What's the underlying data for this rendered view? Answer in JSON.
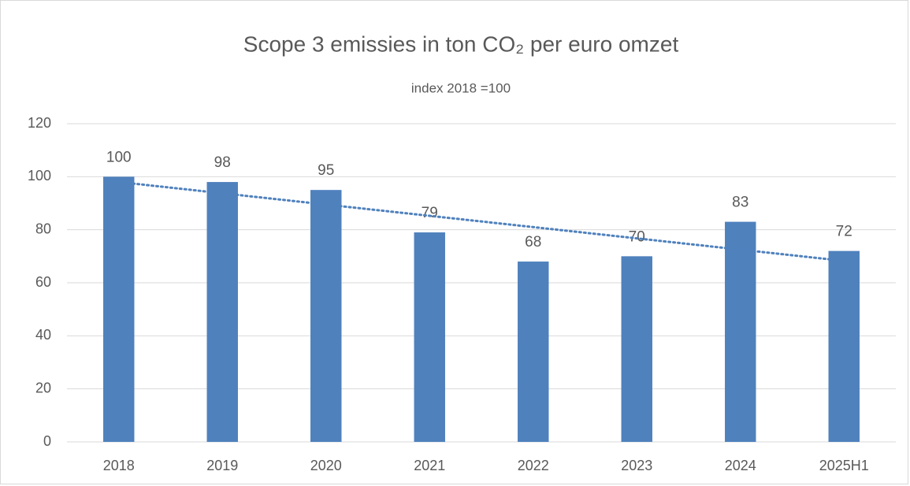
{
  "chart_data": {
    "type": "bar",
    "title": "Scope 3 emissies in ton CO₂ per euro omzet",
    "subtitle": "index 2018 =100",
    "categories": [
      "2018",
      "2019",
      "2020",
      "2021",
      "2022",
      "2023",
      "2024",
      "2025H1"
    ],
    "values": [
      100,
      98,
      95,
      79,
      68,
      70,
      83,
      72
    ],
    "color": "#4f81bd",
    "ylim": [
      0,
      120
    ],
    "yticks": [
      0,
      20,
      40,
      60,
      80,
      100,
      120
    ],
    "grid": true,
    "trendline": "linear",
    "trendline_color": "#4f81bd"
  }
}
